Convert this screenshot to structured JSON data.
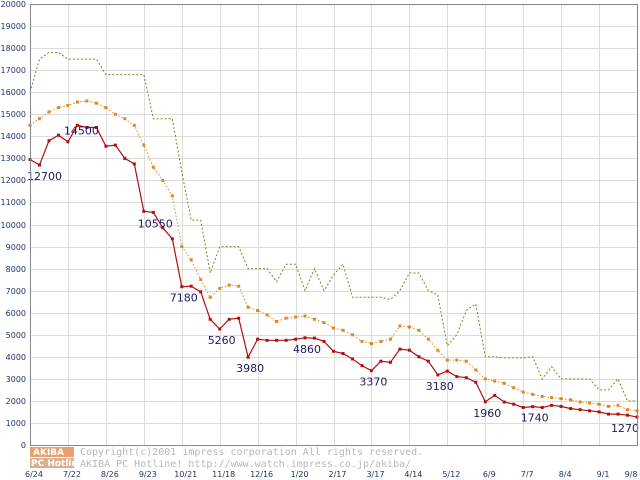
{
  "chart_data": {
    "type": "line",
    "title": "",
    "xlabel": "",
    "ylabel": "",
    "ylim": [
      0,
      20000
    ],
    "y_ticks": [
      0,
      1000,
      2000,
      3000,
      4000,
      5000,
      6000,
      7000,
      8000,
      9000,
      10000,
      11000,
      12000,
      13000,
      14000,
      15000,
      16000,
      17000,
      18000,
      19000,
      20000
    ],
    "x_tick_labels": [
      "6/24",
      "7/22",
      "8/26",
      "9/23",
      "10/21",
      "11/18",
      "12/16",
      "1/20",
      "2/17",
      "3/17",
      "4/14",
      "5/12",
      "6/9",
      "7/7",
      "8/4",
      "9/1",
      "9/8"
    ],
    "grid": true,
    "series": [
      {
        "color": "#b01010",
        "style": "solid-markers",
        "values": [
          12950,
          12700,
          13800,
          14050,
          13750,
          14500,
          14400,
          14400,
          13550,
          13600,
          13000,
          12750,
          10600,
          10550,
          9850,
          9350,
          7180,
          7200,
          6950,
          5700,
          5260,
          5700,
          5750,
          3980,
          4800,
          4750,
          4750,
          4750,
          4800,
          4860,
          4850,
          4700,
          4250,
          4150,
          3900,
          3600,
          3370,
          3800,
          3750,
          4350,
          4300,
          4000,
          3800,
          3180,
          3350,
          3100,
          3050,
          2850,
          1960,
          2250,
          1950,
          1850,
          1700,
          1740,
          1700,
          1800,
          1750,
          1650,
          1600,
          1550,
          1500,
          1400,
          1400,
          1350,
          1270
        ]
      },
      {
        "color": "#e08820",
        "style": "dotted-markers",
        "values": [
          14500,
          14800,
          15100,
          15300,
          15400,
          15550,
          15600,
          15500,
          15300,
          15000,
          14800,
          14500,
          13600,
          12600,
          12000,
          11300,
          9000,
          8400,
          7500,
          6700,
          7100,
          7250,
          7200,
          6250,
          6100,
          5900,
          5600,
          5750,
          5800,
          5850,
          5700,
          5550,
          5300,
          5200,
          5000,
          4700,
          4600,
          4700,
          4800,
          5400,
          5350,
          5200,
          4800,
          4300,
          3850,
          3850,
          3800,
          3400,
          3000,
          2900,
          2800,
          2600,
          2400,
          2300,
          2200,
          2150,
          2100,
          2050,
          1950,
          1900,
          1850,
          1750,
          1800,
          1600,
          1550
        ]
      },
      {
        "color": "#6e8e1e",
        "style": "dashed",
        "values": [
          16000,
          17500,
          17800,
          17800,
          17500,
          17500,
          17500,
          17500,
          16800,
          16800,
          16800,
          16800,
          16800,
          14800,
          14800,
          14800,
          12400,
          10200,
          10200,
          7800,
          9000,
          9000,
          9000,
          8000,
          8000,
          8000,
          7400,
          8200,
          8200,
          7000,
          8000,
          7000,
          7700,
          8200,
          6700,
          6700,
          6700,
          6700,
          6600,
          7000,
          7800,
          7800,
          7000,
          6800,
          4500,
          5000,
          6100,
          6400,
          4000,
          4000,
          3950,
          3950,
          3950,
          4000,
          3000,
          3550,
          3000,
          3000,
          3000,
          3000,
          2500,
          2500,
          3000,
          2000,
          2000
        ]
      }
    ],
    "data_labels": [
      {
        "series": 0,
        "index": 1,
        "text": "12700"
      },
      {
        "series": 0,
        "index": 5,
        "text": "14500"
      },
      {
        "series": 0,
        "index": 13,
        "text": "10550"
      },
      {
        "series": 0,
        "index": 16,
        "text": "7180"
      },
      {
        "series": 0,
        "index": 20,
        "text": "5260"
      },
      {
        "series": 0,
        "index": 23,
        "text": "3980"
      },
      {
        "series": 0,
        "index": 29,
        "text": "4860"
      },
      {
        "series": 0,
        "index": 36,
        "text": "3370"
      },
      {
        "series": 0,
        "index": 43,
        "text": "3180"
      },
      {
        "series": 0,
        "index": 48,
        "text": "1960"
      },
      {
        "series": 0,
        "index": 53,
        "text": "1740"
      },
      {
        "series": 0,
        "index": 64,
        "text": "1270"
      }
    ]
  },
  "watermark": {
    "logo_top": "AKIBA",
    "logo_bottom": "PC Hotline!",
    "line1": "Copyright(c)2001 impress corporation All rights reserved.",
    "line2": "AKIBA PC Hotline!  http://www.watch.impress.co.jp/akiba/"
  }
}
